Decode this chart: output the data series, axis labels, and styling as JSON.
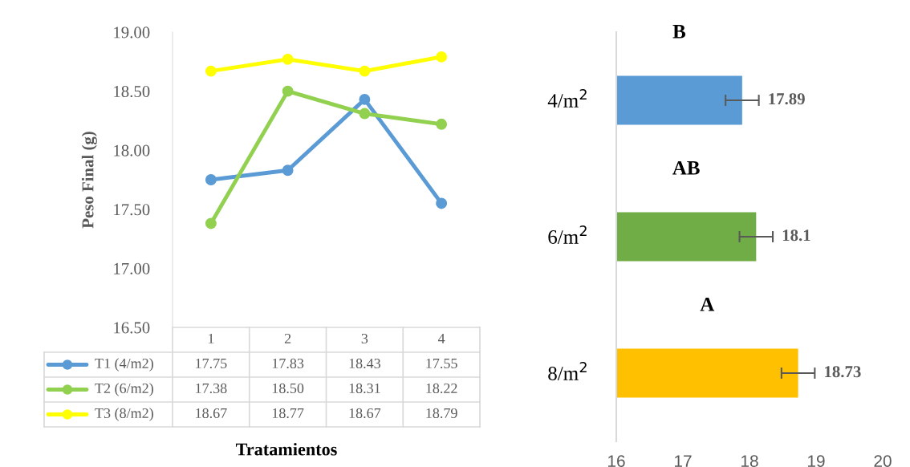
{
  "chart_data": [
    {
      "type": "line",
      "ylabel": "Peso Final (g)",
      "xlabel": "Tratamientos",
      "categories": [
        "1",
        "2",
        "3",
        "4"
      ],
      "ylim": [
        16.5,
        19.0
      ],
      "yticks": [
        {
          "value": 16.5,
          "label": "16.50"
        },
        {
          "value": 17.0,
          "label": "17.00"
        },
        {
          "value": 17.5,
          "label": "17.50"
        },
        {
          "value": 18.0,
          "label": "18.00"
        },
        {
          "value": 18.5,
          "label": "18.50"
        },
        {
          "value": 19.0,
          "label": "19.00"
        }
      ],
      "marker": "circle",
      "grid": false,
      "legend": "bottom",
      "tick_labels": "y",
      "series": [
        {
          "name": "T1 (4/m2)",
          "color": "#5b9bd5",
          "values": [
            17.75,
            17.83,
            18.43,
            17.55
          ],
          "value_labels": [
            "17.75",
            "17.83",
            "18.43",
            "17.55"
          ]
        },
        {
          "name": "T2 (6/m2)",
          "color": "#92d050",
          "values": [
            17.38,
            18.5,
            18.31,
            18.22
          ],
          "value_labels": [
            "17.38",
            "18.50",
            "18.31",
            "18.22"
          ]
        },
        {
          "name": "T3 (8/m2)",
          "color": "#ffff00",
          "values": [
            18.67,
            18.77,
            18.67,
            18.79
          ],
          "value_labels": [
            "18.67",
            "18.77",
            "18.67",
            "18.79"
          ]
        }
      ]
    },
    {
      "type": "bar",
      "orientation": "horizontal",
      "categories": [
        "4/m$^{2}$",
        "6/m$^{2}$",
        "8/m$^{2}$"
      ],
      "values": [
        17.89,
        18.1,
        18.73
      ],
      "errors": [
        0.25,
        0.25,
        0.25
      ],
      "colors": [
        "#5b9bd5",
        "#70ad47",
        "#ffc000"
      ],
      "xlim": [
        16,
        20
      ],
      "xticks": [
        16,
        17,
        18,
        19,
        20
      ],
      "grid": false,
      "data_labels": true,
      "annotations": [
        "B",
        "AB",
        "A"
      ]
    }
  ]
}
